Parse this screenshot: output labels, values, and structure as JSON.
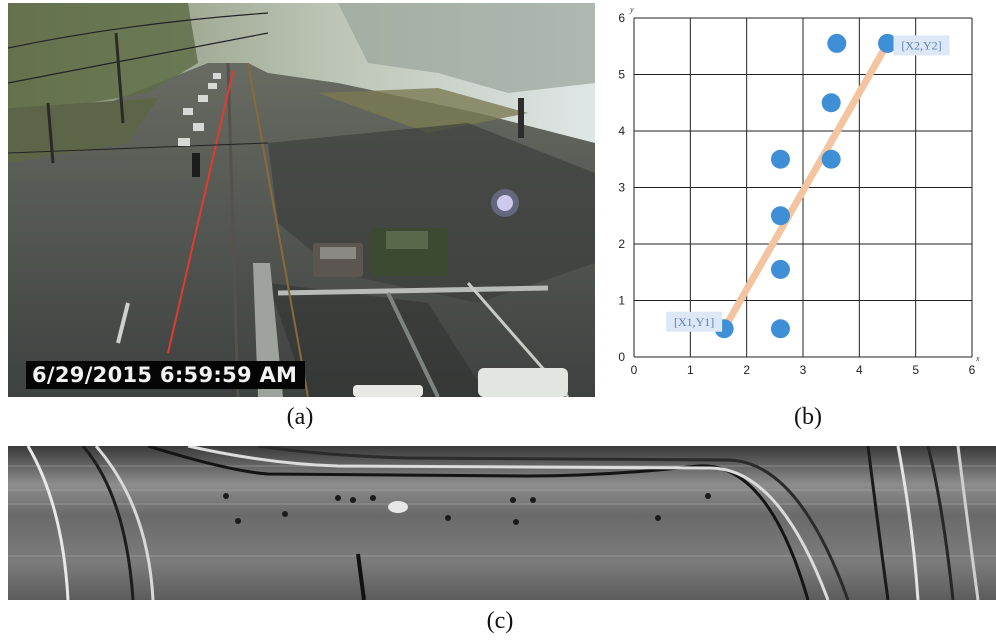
{
  "figure": {
    "panel_a": {
      "caption": "(a)",
      "timestamp": "6/29/2015 6:59:59 AM"
    },
    "panel_b": {
      "caption": "(b)"
    },
    "panel_c": {
      "caption": "(c)"
    }
  },
  "chart_data": {
    "type": "scatter",
    "title": "",
    "xlabel": "x",
    "ylabel": "y",
    "xlim": [
      0,
      6
    ],
    "ylim": [
      0,
      6
    ],
    "xticks": [
      "0",
      "1",
      "2",
      "3",
      "4",
      "5",
      "6"
    ],
    "yticks": [
      "0",
      "1",
      "2",
      "3",
      "4",
      "5",
      "6"
    ],
    "grid": true,
    "points": [
      {
        "x": 1.6,
        "y": 0.5
      },
      {
        "x": 2.6,
        "y": 0.5
      },
      {
        "x": 2.6,
        "y": 1.55
      },
      {
        "x": 2.6,
        "y": 2.5
      },
      {
        "x": 2.6,
        "y": 3.5
      },
      {
        "x": 3.5,
        "y": 3.5
      },
      {
        "x": 3.5,
        "y": 4.5
      },
      {
        "x": 3.6,
        "y": 5.55
      },
      {
        "x": 4.5,
        "y": 5.55
      }
    ],
    "fitted_line": {
      "x1": 1.6,
      "y1": 0.5,
      "x2": 4.5,
      "y2": 5.55
    },
    "annotations": [
      {
        "text": "[X1,Y1]",
        "x": 1.6,
        "y": 0.5
      },
      {
        "text": "[X2,Y2]",
        "x": 4.5,
        "y": 5.55
      }
    ],
    "colors": {
      "points": "#3f8fd6",
      "line": "#f3c49f",
      "label_box": "#dde8f6"
    }
  }
}
